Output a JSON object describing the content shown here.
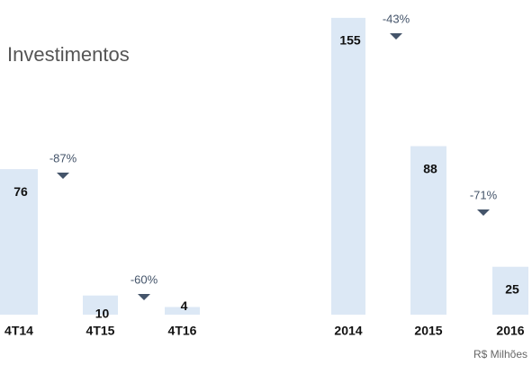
{
  "title": "Investimentos",
  "unit": "R$ Milhões",
  "chart_data": [
    {
      "type": "bar",
      "categories": [
        "4T14",
        "4T15",
        "4T16"
      ],
      "values": [
        76,
        10,
        4
      ],
      "color": "#dce8f5",
      "annotations": [
        "-87%",
        "-60%"
      ]
    },
    {
      "type": "bar",
      "categories": [
        "2014",
        "2015",
        "2016"
      ],
      "values": [
        155,
        88,
        25
      ],
      "color": "#dce8f5",
      "annotations": [
        "-43%",
        "-71%"
      ]
    }
  ]
}
